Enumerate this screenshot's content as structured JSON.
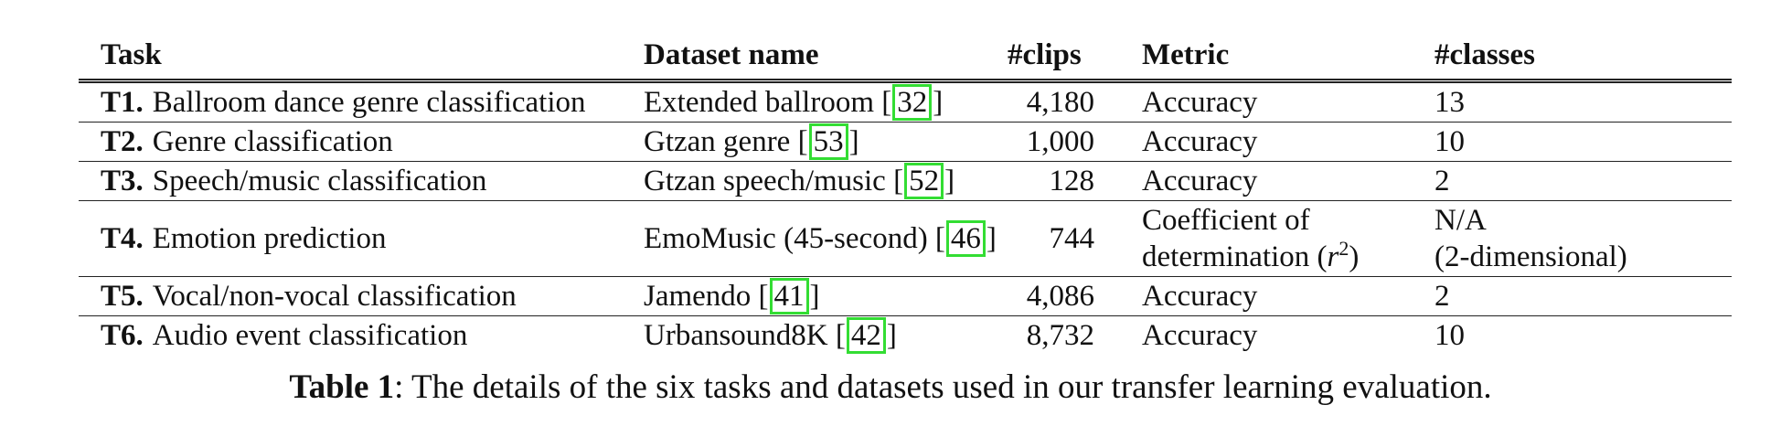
{
  "table": {
    "headers": {
      "task": "Task",
      "dataset": "Dataset name",
      "clips": "#clips",
      "metric": "Metric",
      "classes": "#classes"
    },
    "rows": [
      {
        "id": "T1.",
        "task": "Ballroom dance genre classification",
        "dataset": "Extended ballroom [",
        "ref": "32",
        "dataset_end": "]",
        "clips": "4,180",
        "metric": "Accuracy",
        "classes": "13"
      },
      {
        "id": "T2.",
        "task": "Genre classification",
        "dataset": "Gtzan genre [",
        "ref": "53",
        "dataset_end": "]",
        "clips": "1,000",
        "metric": "Accuracy",
        "classes": "10"
      },
      {
        "id": "T3.",
        "task": "Speech/music classification",
        "dataset": "Gtzan speech/music [",
        "ref": "52",
        "dataset_end": "]",
        "clips": "128",
        "metric": "Accuracy",
        "classes": "2"
      },
      {
        "id": "T4.",
        "task": "Emotion prediction",
        "dataset": "EmoMusic (45-second) [",
        "ref": "46",
        "dataset_end": "]",
        "clips": "744",
        "metric_line1": "Coefficient of",
        "metric_line2": "determination (",
        "metric_var": "r",
        "metric_sup": "2",
        "metric_end": ")",
        "classes_line1": "N/A",
        "classes_line2": "(2-dimensional)"
      },
      {
        "id": "T5.",
        "task": "Vocal/non-vocal classification",
        "dataset": "Jamendo [",
        "ref": "41",
        "dataset_end": "]",
        "clips": "4,086",
        "metric": "Accuracy",
        "classes": "2"
      },
      {
        "id": "T6.",
        "task": "Audio event classification",
        "dataset": "Urbansound8K [",
        "ref": "42",
        "dataset_end": "]",
        "clips": "8,732",
        "metric": "Accuracy",
        "classes": "10"
      }
    ]
  },
  "caption": {
    "label": "Table 1",
    "text": ": The details of the six tasks and datasets used in our transfer learning evaluation."
  },
  "colors": {
    "ref_box": "#33dd33",
    "rule": "#222222"
  }
}
